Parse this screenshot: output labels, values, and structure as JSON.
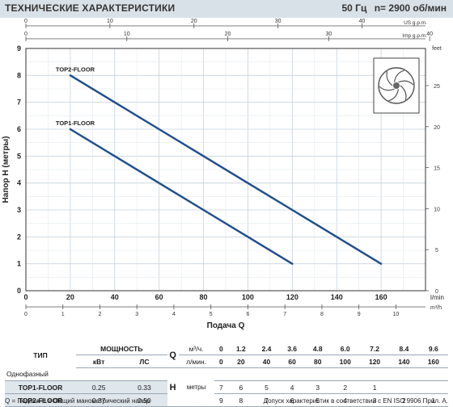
{
  "header": {
    "title": "ТЕХНИЧЕСКИЕ ХАРАКТЕРИСТИКИ",
    "frequency": "50 Гц",
    "speed": "n= 2900 об/мин"
  },
  "axes": {
    "top_us_unit": "US g.p.m.",
    "top_imp_unit": "Imp g.p.m.",
    "left_label": "Напор  H  (метры)",
    "right_unit": "feet",
    "bottom_lmin_unit": "l/min",
    "bottom_m3h_unit": "m³/h",
    "bottom_label": "Подача  Q"
  },
  "chart_data": {
    "type": "line",
    "title": "",
    "xlabel": "Подача Q",
    "ylabel": "Напор H (метры)",
    "xlim": [
      0,
      180
    ],
    "ylim": [
      0,
      9
    ],
    "x_unit": "l/min",
    "grid": true,
    "x_ticks": [
      0,
      20,
      40,
      60,
      80,
      100,
      120,
      140,
      160
    ],
    "y_ticks": [
      0,
      1,
      2,
      3,
      4,
      5,
      6,
      7,
      8,
      9
    ],
    "secondary_axes": {
      "us_gpm": {
        "ticks": [
          0,
          10,
          20,
          30,
          40
        ],
        "range": [
          0,
          47.55
        ]
      },
      "imp_gpm": {
        "ticks": [
          0,
          10,
          20,
          30,
          40
        ],
        "range": [
          0,
          39.59
        ]
      },
      "feet": {
        "ticks": [
          0,
          5,
          10,
          15,
          20,
          25
        ],
        "range": [
          0,
          29.53
        ]
      },
      "m3h": {
        "ticks": [
          0,
          1,
          2,
          3,
          4,
          5,
          6,
          7,
          8,
          9,
          10
        ],
        "range": [
          0,
          10.8
        ]
      }
    },
    "series": [
      {
        "name": "TOP2-FLOOR",
        "color": "#1f4e8c",
        "points": [
          [
            20,
            8
          ],
          [
            40,
            7
          ],
          [
            60,
            6
          ],
          [
            80,
            5
          ],
          [
            100,
            4
          ],
          [
            120,
            3
          ],
          [
            140,
            2
          ],
          [
            160,
            1
          ]
        ]
      },
      {
        "name": "TOP1-FLOOR",
        "color": "#1f4e8c",
        "points": [
          [
            20,
            6
          ],
          [
            40,
            5
          ],
          [
            60,
            4
          ],
          [
            80,
            3
          ],
          [
            100,
            2
          ],
          [
            120,
            1
          ]
        ]
      }
    ]
  },
  "table": {
    "type_header": "ТИП",
    "power_header": "МОЩНОСТЬ",
    "phase_label": "Однофазный",
    "kw_label": "кВт",
    "hp_label": "ЛС",
    "q_symbol": "Q",
    "q_unit_m3": "м³/ч.",
    "q_unit_l": "л/мин.",
    "h_symbol": "H",
    "h_unit": "метры",
    "m3h": [
      "0",
      "1.2",
      "2.4",
      "3.6",
      "4.8",
      "6.0",
      "7.2",
      "8.4",
      "9.6"
    ],
    "lmin": [
      "0",
      "20",
      "40",
      "60",
      "80",
      "100",
      "120",
      "140",
      "160"
    ],
    "rows": [
      {
        "model": "TOP1-FLOOR",
        "kw": "0.25",
        "hp": "0.33",
        "h": [
          "7",
          "6",
          "5",
          "4",
          "3",
          "2",
          "1",
          "",
          ""
        ]
      },
      {
        "model": "TOP2-FLOOR",
        "kw": "0.37",
        "hp": "0.50",
        "h": [
          "9",
          "8",
          "7",
          "6",
          "5",
          "4",
          "3",
          "2",
          "1"
        ]
      }
    ]
  },
  "footer": {
    "left": "Q = Подача   H = Общий манометрический напор",
    "right": "Допуск характеристик в соответствии с EN ISO 9906 Прил. A."
  }
}
